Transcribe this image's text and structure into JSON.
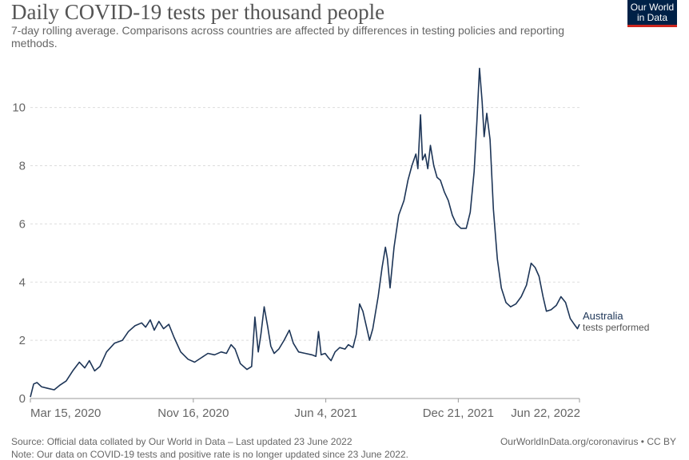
{
  "header": {
    "title": "Daily COVID-19 tests per thousand people",
    "subtitle": "7-day rolling average. Comparisons across countries are affected by differences in testing policies and reporting methods."
  },
  "logo": {
    "line1": "Our World",
    "line2": "in Data",
    "bg": "#002147",
    "accent": "#ce261e"
  },
  "footer": {
    "source": "Source: Official data collated by Our World in Data – Last updated 23 June 2022",
    "note": "Note: Our data on COVID-19 tests and positive rate is no longer updated since 23 June 2022.",
    "credit": "OurWorldInData.org/coronavirus • CC BY"
  },
  "chart_data": {
    "type": "line",
    "title": "Daily COVID-19 tests per thousand people",
    "ylim": [
      0,
      11.5
    ],
    "grid": true,
    "y_ticks": [
      0,
      2,
      4,
      6,
      8,
      10
    ],
    "x_ticks": [
      {
        "date": "2020-03-15",
        "label": "Mar 15, 2020"
      },
      {
        "date": "2020-11-16",
        "label": "Nov 16, 2020"
      },
      {
        "date": "2021-06-04",
        "label": "Jun 4, 2021"
      },
      {
        "date": "2021-12-21",
        "label": "Dec 21, 2021"
      },
      {
        "date": "2022-06-22",
        "label": "Jun 22, 2022"
      }
    ],
    "color": "#1d3557",
    "series": [
      {
        "name": "Australia",
        "label_lines": [
          "Australia",
          "tests performed"
        ],
        "points": [
          [
            "2020-03-15",
            0.05
          ],
          [
            "2020-03-20",
            0.5
          ],
          [
            "2020-03-25",
            0.55
          ],
          [
            "2020-04-01",
            0.4
          ],
          [
            "2020-04-10",
            0.35
          ],
          [
            "2020-04-20",
            0.3
          ],
          [
            "2020-04-28",
            0.45
          ],
          [
            "2020-05-08",
            0.6
          ],
          [
            "2020-05-18",
            0.95
          ],
          [
            "2020-05-28",
            1.25
          ],
          [
            "2020-06-05",
            1.05
          ],
          [
            "2020-06-12",
            1.3
          ],
          [
            "2020-06-20",
            0.95
          ],
          [
            "2020-06-28",
            1.1
          ],
          [
            "2020-07-08",
            1.6
          ],
          [
            "2020-07-20",
            1.9
          ],
          [
            "2020-08-01",
            2.0
          ],
          [
            "2020-08-10",
            2.3
          ],
          [
            "2020-08-20",
            2.5
          ],
          [
            "2020-08-30",
            2.6
          ],
          [
            "2020-09-05",
            2.45
          ],
          [
            "2020-09-12",
            2.7
          ],
          [
            "2020-09-18",
            2.35
          ],
          [
            "2020-09-25",
            2.65
          ],
          [
            "2020-10-02",
            2.4
          ],
          [
            "2020-10-10",
            2.55
          ],
          [
            "2020-10-18",
            2.1
          ],
          [
            "2020-10-28",
            1.6
          ],
          [
            "2020-11-08",
            1.35
          ],
          [
            "2020-11-18",
            1.25
          ],
          [
            "2020-11-28",
            1.4
          ],
          [
            "2020-12-08",
            1.55
          ],
          [
            "2020-12-18",
            1.5
          ],
          [
            "2020-12-28",
            1.6
          ],
          [
            "2021-01-05",
            1.55
          ],
          [
            "2021-01-12",
            1.85
          ],
          [
            "2021-01-18",
            1.7
          ],
          [
            "2021-01-26",
            1.2
          ],
          [
            "2021-02-05",
            1.0
          ],
          [
            "2021-02-12",
            1.1
          ],
          [
            "2021-02-17",
            2.8
          ],
          [
            "2021-02-22",
            1.6
          ],
          [
            "2021-02-26",
            2.2
          ],
          [
            "2021-03-03",
            3.15
          ],
          [
            "2021-03-08",
            2.5
          ],
          [
            "2021-03-13",
            1.8
          ],
          [
            "2021-03-18",
            1.55
          ],
          [
            "2021-03-25",
            1.7
          ],
          [
            "2021-04-02",
            2.0
          ],
          [
            "2021-04-10",
            2.35
          ],
          [
            "2021-04-16",
            1.9
          ],
          [
            "2021-04-24",
            1.6
          ],
          [
            "2021-05-04",
            1.55
          ],
          [
            "2021-05-14",
            1.5
          ],
          [
            "2021-05-20",
            1.45
          ],
          [
            "2021-05-24",
            2.3
          ],
          [
            "2021-05-28",
            1.5
          ],
          [
            "2021-06-03",
            1.55
          ],
          [
            "2021-06-08",
            1.4
          ],
          [
            "2021-06-12",
            1.3
          ],
          [
            "2021-06-18",
            1.6
          ],
          [
            "2021-06-25",
            1.75
          ],
          [
            "2021-07-03",
            1.7
          ],
          [
            "2021-07-08",
            1.85
          ],
          [
            "2021-07-15",
            1.75
          ],
          [
            "2021-07-20",
            2.2
          ],
          [
            "2021-07-25",
            3.25
          ],
          [
            "2021-07-30",
            3.0
          ],
          [
            "2021-08-04",
            2.5
          ],
          [
            "2021-08-09",
            2.0
          ],
          [
            "2021-08-14",
            2.4
          ],
          [
            "2021-08-22",
            3.5
          ],
          [
            "2021-08-28",
            4.5
          ],
          [
            "2021-09-02",
            5.2
          ],
          [
            "2021-09-05",
            4.8
          ],
          [
            "2021-09-09",
            3.8
          ],
          [
            "2021-09-15",
            5.2
          ],
          [
            "2021-09-22",
            6.3
          ],
          [
            "2021-09-30",
            6.8
          ],
          [
            "2021-10-06",
            7.5
          ],
          [
            "2021-10-12",
            8.0
          ],
          [
            "2021-10-18",
            8.4
          ],
          [
            "2021-10-21",
            7.9
          ],
          [
            "2021-10-25",
            9.75
          ],
          [
            "2021-10-28",
            8.2
          ],
          [
            "2021-11-01",
            8.4
          ],
          [
            "2021-11-05",
            7.9
          ],
          [
            "2021-11-09",
            8.7
          ],
          [
            "2021-11-14",
            8.0
          ],
          [
            "2021-11-19",
            7.6
          ],
          [
            "2021-11-24",
            7.5
          ],
          [
            "2021-11-30",
            7.1
          ],
          [
            "2021-12-06",
            6.8
          ],
          [
            "2021-12-12",
            6.3
          ],
          [
            "2021-12-18",
            6.0
          ],
          [
            "2021-12-25",
            5.85
          ],
          [
            "2022-01-02",
            5.85
          ],
          [
            "2022-01-08",
            6.4
          ],
          [
            "2022-01-14",
            7.8
          ],
          [
            "2022-01-18",
            9.5
          ],
          [
            "2022-01-22",
            11.35
          ],
          [
            "2022-01-26",
            10.2
          ],
          [
            "2022-01-29",
            9.0
          ],
          [
            "2022-02-02",
            9.8
          ],
          [
            "2022-02-07",
            8.9
          ],
          [
            "2022-02-12",
            6.5
          ],
          [
            "2022-02-18",
            4.8
          ],
          [
            "2022-02-24",
            3.8
          ],
          [
            "2022-03-03",
            3.3
          ],
          [
            "2022-03-10",
            3.15
          ],
          [
            "2022-03-18",
            3.25
          ],
          [
            "2022-03-26",
            3.5
          ],
          [
            "2022-04-03",
            3.9
          ],
          [
            "2022-04-10",
            4.65
          ],
          [
            "2022-04-16",
            4.5
          ],
          [
            "2022-04-22",
            4.2
          ],
          [
            "2022-04-28",
            3.5
          ],
          [
            "2022-05-03",
            3.0
          ],
          [
            "2022-05-10",
            3.05
          ],
          [
            "2022-05-18",
            3.2
          ],
          [
            "2022-05-25",
            3.5
          ],
          [
            "2022-06-01",
            3.3
          ],
          [
            "2022-06-08",
            2.75
          ],
          [
            "2022-06-14",
            2.55
          ],
          [
            "2022-06-19",
            2.4
          ],
          [
            "2022-06-22",
            2.55
          ]
        ]
      }
    ]
  }
}
